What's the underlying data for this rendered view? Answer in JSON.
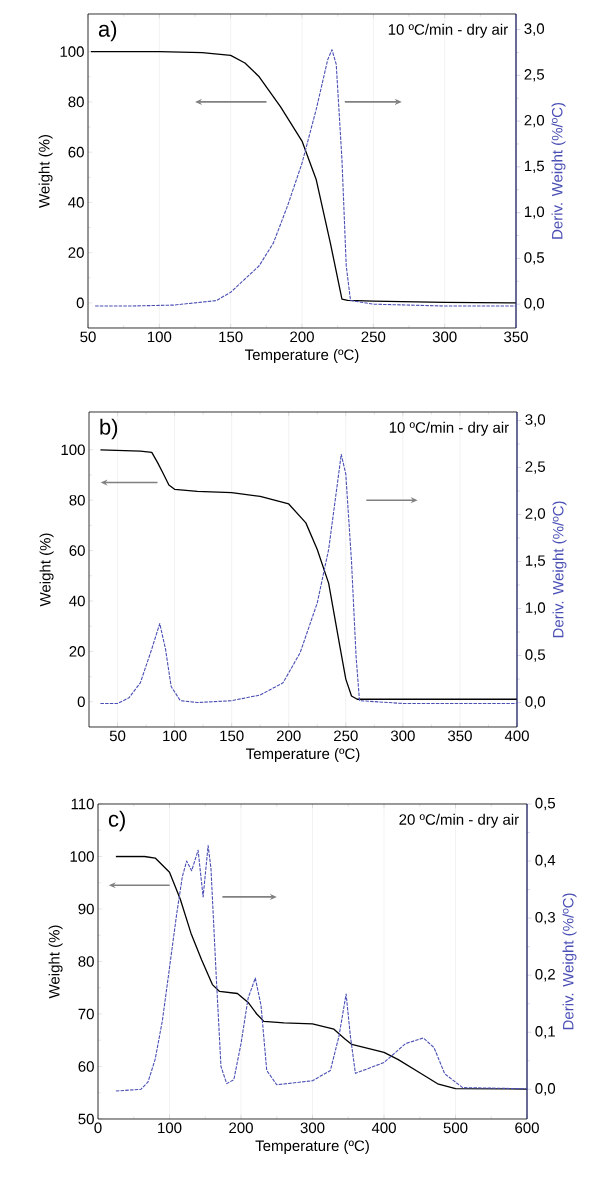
{
  "chart_data": [
    {
      "type": "line",
      "xlabel": "Temperature (ºC)",
      "ylabel": "Weight (%)",
      "y2label": "Deriv. Weight (%/ºC)",
      "annotations": [
        "a)",
        "10 ºC/min - dry air"
      ],
      "xlim": [
        50,
        350
      ],
      "xticks": [
        50,
        100,
        150,
        200,
        250,
        300,
        350
      ],
      "ylim": [
        -10,
        115
      ],
      "yticks": [
        0,
        20,
        40,
        60,
        80,
        100
      ],
      "y2lim": [
        -0.26,
        3.17
      ],
      "y2ticks": [
        {
          "value": 0,
          "label": "0,0"
        },
        {
          "value": 0.5,
          "label": "0,5"
        },
        {
          "value": 1,
          "label": "1,0"
        },
        {
          "value": 1.5,
          "label": "1,5"
        },
        {
          "value": 2,
          "label": "2,0"
        },
        {
          "value": 2.5,
          "label": "2,5"
        },
        {
          "value": 3,
          "label": "3,0"
        }
      ],
      "grid": "x",
      "series": [
        {
          "color": "#000000",
          "line_style": "solid",
          "x": [
            52,
            100,
            130,
            150,
            160,
            170,
            185,
            200,
            210,
            220,
            228,
            232,
            250,
            300,
            350
          ],
          "values": [
            100,
            100,
            99.6,
            98.5,
            95.5,
            90,
            78,
            64.4,
            49,
            23.5,
            1.5,
            1,
            0.7,
            0.2,
            0
          ]
        },
        {
          "color": "#4a4fb5",
          "line_style": "dashed",
          "axis": "y2",
          "x": [
            55,
            80,
            110,
            140,
            150,
            170,
            180,
            190,
            200,
            210,
            218,
            221,
            224,
            228,
            231,
            234,
            250,
            300,
            350
          ],
          "values": [
            -0.02,
            -0.02,
            -0.01,
            0.04,
            0.13,
            0.42,
            0.67,
            1.08,
            1.54,
            2.13,
            2.67,
            2.78,
            2.62,
            1.58,
            0.42,
            0.04,
            0.0,
            -0.02,
            -0.02
          ]
        }
      ]
    },
    {
      "type": "line",
      "xlabel": "Temperature (ºC)",
      "ylabel": "Weight (%)",
      "y2label": "Deriv. Weight (%/ºC)",
      "annotations": [
        "b)",
        "10 ºC/min - dry air"
      ],
      "xlim": [
        25,
        400
      ],
      "xticks": [
        50,
        100,
        150,
        200,
        250,
        300,
        350,
        400
      ],
      "ylim": [
        -10,
        115
      ],
      "yticks": [
        0,
        20,
        40,
        60,
        80,
        100
      ],
      "y2lim": [
        -0.26,
        3.09
      ],
      "y2ticks": [
        {
          "value": 0,
          "label": "0,0"
        },
        {
          "value": 0.5,
          "label": "0,5"
        },
        {
          "value": 1,
          "label": "1,0"
        },
        {
          "value": 1.5,
          "label": "1,5"
        },
        {
          "value": 2,
          "label": "2,0"
        },
        {
          "value": 2.5,
          "label": "2,5"
        },
        {
          "value": 3,
          "label": "3,0"
        }
      ],
      "grid": "x",
      "series": [
        {
          "color": "#000000",
          "line_style": "solid",
          "x": [
            35,
            70,
            80,
            85,
            90,
            95,
            100,
            120,
            150,
            175,
            200,
            215,
            225,
            235,
            245,
            250,
            255,
            260,
            400
          ],
          "values": [
            100,
            99.5,
            99,
            95,
            90.6,
            86,
            84.3,
            83.5,
            83,
            81.5,
            78.5,
            71,
            60.4,
            47,
            21.5,
            9,
            2.3,
            1,
            1
          ]
        },
        {
          "color": "#4a4fb5",
          "line_style": "dashed",
          "axis": "y2",
          "x": [
            35,
            50,
            60,
            70,
            80,
            87,
            92,
            97,
            105,
            120,
            150,
            175,
            195,
            210,
            225,
            235,
            242,
            246,
            250,
            255,
            259,
            262,
            300,
            400
          ],
          "values": [
            -0.01,
            -0.01,
            0.05,
            0.21,
            0.57,
            0.84,
            0.57,
            0.17,
            0.02,
            0.0,
            0.02,
            0.08,
            0.21,
            0.53,
            1.06,
            1.63,
            2.27,
            2.64,
            2.43,
            1.5,
            0.49,
            0.02,
            -0.01,
            -0.01
          ]
        }
      ]
    },
    {
      "type": "line",
      "xlabel": "Temperature (ºC)",
      "ylabel": "Weight (%)",
      "y2label": "Deriv. Weight (%/ºC)",
      "annotations": [
        "c)",
        "20 ºC/min - dry air"
      ],
      "xlim": [
        0,
        600
      ],
      "xticks": [
        0,
        100,
        200,
        300,
        400,
        500,
        600
      ],
      "ylim": [
        50,
        110
      ],
      "yticks": [
        50,
        60,
        70,
        80,
        90,
        100,
        110
      ],
      "y2lim": [
        -0.052,
        0.5
      ],
      "y2ticks": [
        {
          "value": 0,
          "label": "0,0"
        },
        {
          "value": 0.1,
          "label": "0,1"
        },
        {
          "value": 0.2,
          "label": "0,2"
        },
        {
          "value": 0.3,
          "label": "0,3"
        },
        {
          "value": 0.4,
          "label": "0,4"
        },
        {
          "value": 0.5,
          "label": "0,5"
        }
      ],
      "grid": "x",
      "series": [
        {
          "color": "#000000",
          "line_style": "solid",
          "x": [
            25,
            65,
            80,
            100,
            115,
            130,
            145,
            160,
            170,
            195,
            210,
            222,
            232,
            260,
            300,
            330,
            345,
            355,
            400,
            420,
            450,
            475,
            500,
            600
          ],
          "values": [
            100,
            100,
            99.7,
            97,
            91.9,
            85.4,
            80.3,
            75.6,
            74.3,
            73.9,
            72.2,
            70,
            68.6,
            68.3,
            68.1,
            67.1,
            65.3,
            64.2,
            62.7,
            61.3,
            58.8,
            56.7,
            55.8,
            55.7
          ]
        },
        {
          "color": "#4a4fb5",
          "line_style": "dashed",
          "axis": "y2",
          "x": [
            25,
            60,
            70,
            80,
            90,
            100,
            110,
            118,
            124,
            131,
            140,
            147,
            154,
            158,
            165,
            172,
            180,
            190,
            200,
            210,
            220,
            228,
            236,
            250,
            300,
            325,
            337,
            347,
            353,
            360,
            400,
            430,
            455,
            470,
            485,
            510,
            600
          ],
          "values": [
            -0.003,
            0,
            0.013,
            0.053,
            0.12,
            0.213,
            0.307,
            0.373,
            0.4,
            0.383,
            0.419,
            0.337,
            0.427,
            0.387,
            0.207,
            0.04,
            0.01,
            0.017,
            0.08,
            0.16,
            0.195,
            0.147,
            0.033,
            0.008,
            0.015,
            0.033,
            0.093,
            0.167,
            0.093,
            0.028,
            0.047,
            0.08,
            0.09,
            0.073,
            0.027,
            0.003,
            0.001
          ]
        }
      ]
    }
  ]
}
